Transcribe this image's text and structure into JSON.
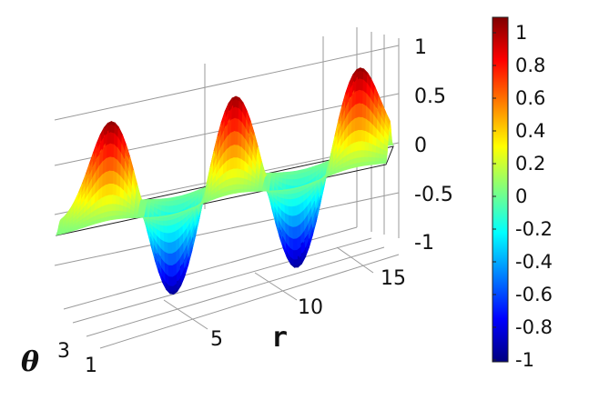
{
  "chart_data": {
    "type": "surface",
    "title": "",
    "xlabel": "r",
    "ylabel": "θ",
    "zlabel": "",
    "x_ticks": [
      "5",
      "10",
      "15"
    ],
    "y_ticks": [
      "1",
      "3"
    ],
    "z_ticks": [
      "1",
      "0.5",
      "0",
      "-0.5",
      "-1"
    ],
    "z_range": [
      -1,
      1
    ],
    "colorbar": {
      "range": [
        -1,
        1
      ],
      "ticks": [
        "1",
        "0.8",
        "0.6",
        "0.4",
        "0.2",
        "0",
        "-0.2",
        "-0.4",
        "-0.6",
        "-0.8",
        "-1"
      ],
      "colormap": "jet"
    },
    "series": [
      {
        "peaks": [
          {
            "r": 3.5,
            "value": 1
          },
          {
            "r": 9.5,
            "value": 1
          },
          {
            "r": 15.5,
            "value": 1
          }
        ],
        "troughs": [
          {
            "r": 6.5,
            "value": -1
          },
          {
            "r": 12.5,
            "value": -1
          }
        ]
      }
    ],
    "grid": true,
    "legend": "none"
  }
}
